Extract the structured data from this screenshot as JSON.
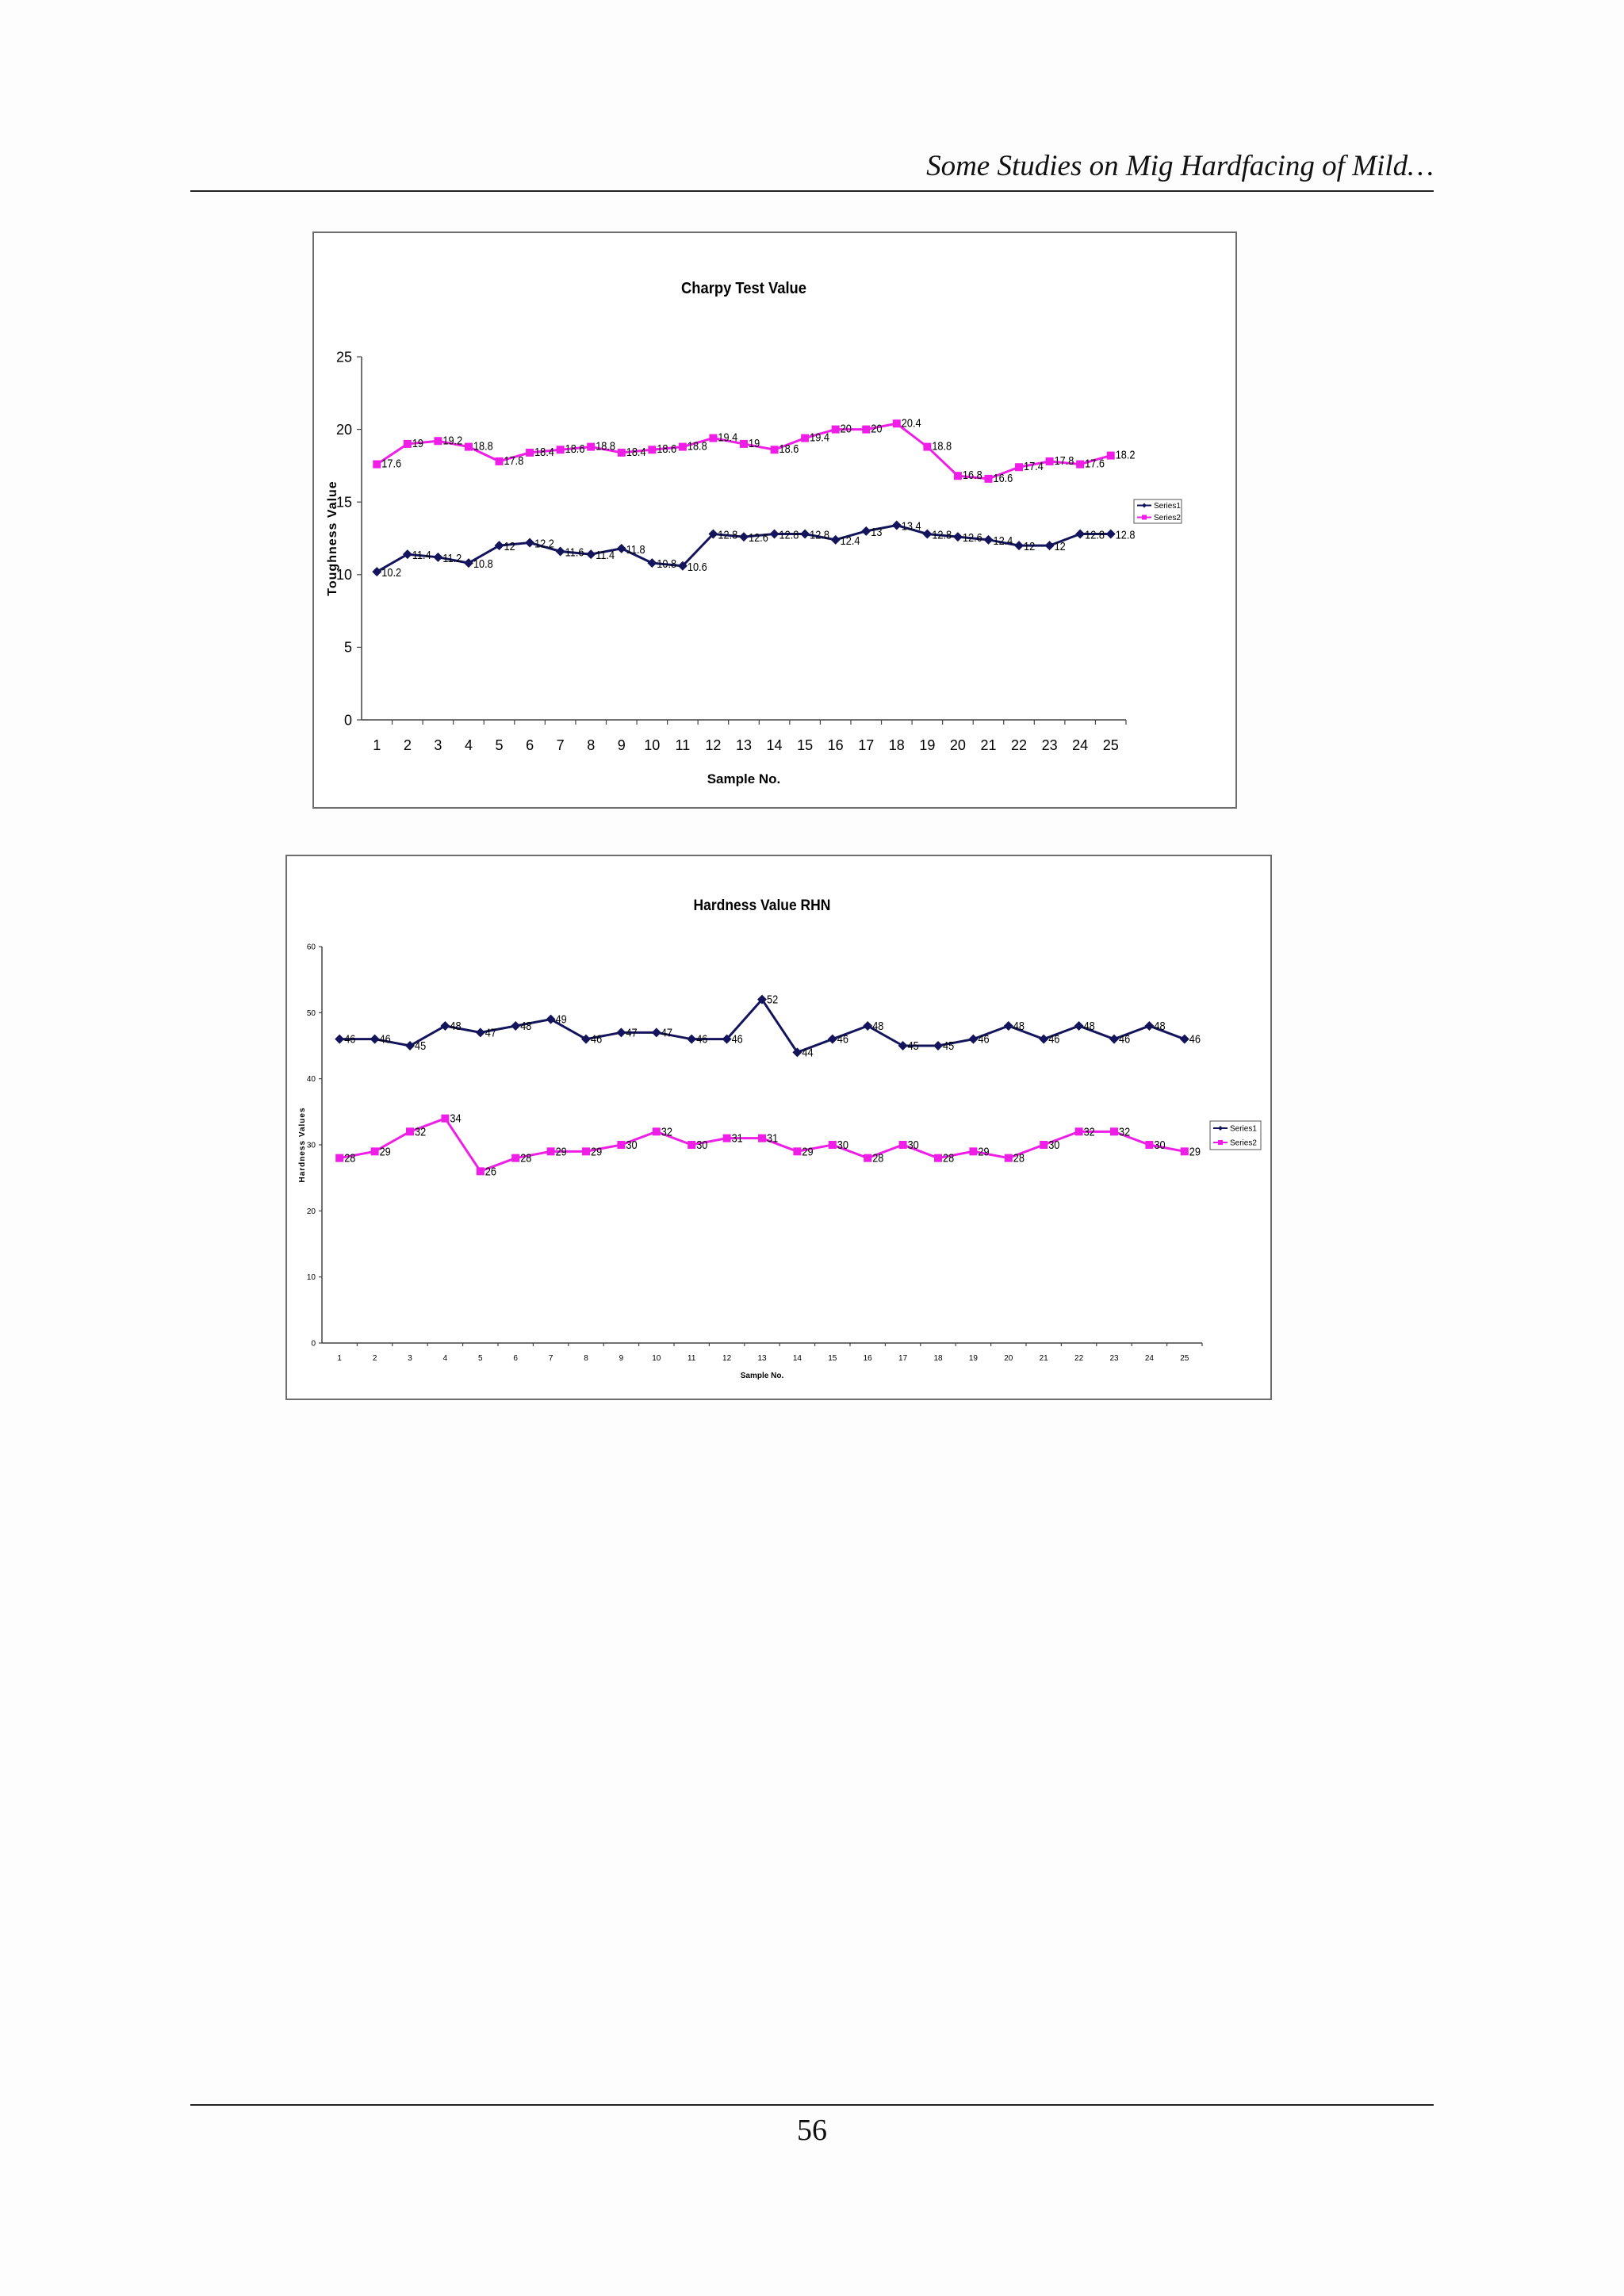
{
  "header": {
    "running_title": "Some Studies on Mig Hardfacing of Mild…"
  },
  "footer": {
    "page_number": "56"
  },
  "colors": {
    "series1": "#14145c",
    "series2": "#ee1ee6",
    "axis": "#444444",
    "border": "#6d6d6d"
  },
  "chart_data": [
    {
      "type": "line",
      "title": "Charpy Test Value",
      "xlabel": "Sample No.",
      "ylabel": "Toughness Value",
      "ylim": [
        0,
        25
      ],
      "yticks": [
        0,
        5,
        10,
        15,
        20,
        25
      ],
      "grid": false,
      "legend_position": "right",
      "x": [
        1,
        2,
        3,
        4,
        5,
        6,
        7,
        8,
        9,
        10,
        11,
        12,
        13,
        14,
        15,
        16,
        17,
        18,
        19,
        20,
        21,
        22,
        23,
        24,
        25
      ],
      "series": [
        {
          "name": "Series1",
          "marker": "diamond",
          "values": [
            10.2,
            11.4,
            11.2,
            10.8,
            12,
            12.2,
            11.6,
            11.4,
            11.8,
            10.8,
            10.6,
            12.8,
            12.6,
            12.8,
            12.8,
            12.4,
            13,
            13.4,
            12.8,
            12.6,
            12.4,
            12,
            12,
            12.8,
            12.8
          ],
          "labels": [
            "10.2",
            "11.4",
            "11.2",
            "10.8",
            "12",
            "12.2",
            "11.6",
            "11.4",
            "11.8",
            "10.8",
            "10.6",
            "12.8",
            "12.6",
            "12.8",
            "12.8",
            "12.4",
            "13",
            "13.4",
            "12.8",
            "12.6",
            "12.4",
            "12",
            "12",
            "12.8",
            "12.8"
          ]
        },
        {
          "name": "Series2",
          "marker": "square",
          "values": [
            17.6,
            19,
            19.2,
            18.8,
            17.8,
            18.4,
            18.6,
            18.8,
            18.4,
            18.6,
            18.8,
            19.4,
            19,
            18.6,
            19.4,
            20,
            20,
            20.4,
            18.8,
            16.8,
            16.6,
            17.4,
            17.8,
            17.6,
            18.2
          ],
          "labels": [
            "17.6",
            "19",
            "19.2",
            "18.8",
            "17.8",
            "18.4",
            "18.6",
            "18.8",
            "18.4",
            "18.6",
            "18.8",
            "19.4",
            "19",
            "18.6",
            "19.4",
            "20",
            "20",
            "20.4",
            "18.8",
            "16.8",
            "16.6",
            "17.4",
            "17.8",
            "17.6",
            "18.2"
          ]
        }
      ]
    },
    {
      "type": "line",
      "title": "Hardness Value RHN",
      "xlabel": "Sample No.",
      "ylabel": "Hardness Values",
      "ylim": [
        0,
        60
      ],
      "yticks": [
        0,
        10,
        20,
        30,
        40,
        50,
        60
      ],
      "grid": false,
      "legend_position": "right",
      "x": [
        1,
        2,
        3,
        4,
        5,
        6,
        7,
        8,
        9,
        10,
        11,
        12,
        13,
        14,
        15,
        16,
        17,
        18,
        19,
        20,
        21,
        22,
        23,
        24,
        25
      ],
      "series": [
        {
          "name": "Series1",
          "marker": "diamond",
          "values": [
            46,
            46,
            45,
            48,
            47,
            48,
            49,
            46,
            47,
            47,
            46,
            46,
            52,
            44,
            46,
            48,
            45,
            45,
            46,
            48,
            46,
            48,
            46,
            48,
            46
          ],
          "labels": [
            "46",
            "46",
            "45",
            "48",
            "47",
            "48",
            "49",
            "46",
            "47",
            "47",
            "46",
            "46",
            "52",
            "44",
            "46",
            "48",
            "45",
            "45",
            "46",
            "48",
            "46",
            "48",
            "46",
            "48",
            "46"
          ]
        },
        {
          "name": "Series2",
          "marker": "square",
          "values": [
            28,
            29,
            32,
            34,
            26,
            28,
            29,
            29,
            30,
            32,
            30,
            31,
            31,
            29,
            30,
            28,
            30,
            28,
            29,
            28,
            30,
            32,
            32,
            30,
            29
          ],
          "labels": [
            "28",
            "29",
            "32",
            "34",
            "26",
            "28",
            "29",
            "29",
            "30",
            "32",
            "30",
            "31",
            "31",
            "29",
            "30",
            "28",
            "30",
            "28",
            "29",
            "28",
            "30",
            "32",
            "32",
            "30",
            "29"
          ]
        }
      ]
    }
  ]
}
